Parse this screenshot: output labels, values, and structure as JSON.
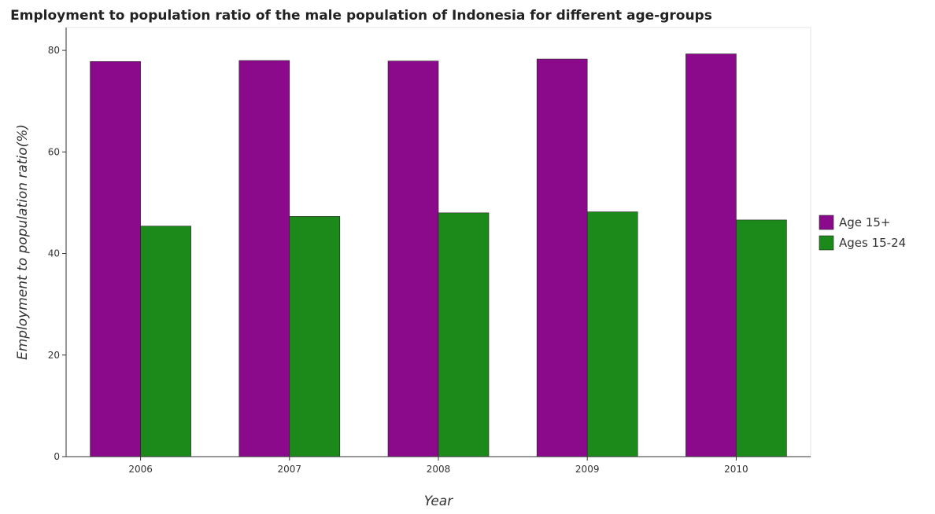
{
  "chart_data": {
    "type": "bar",
    "title": "Employment to population ratio of the male population of Indonesia for different age-groups",
    "xlabel": "Year",
    "ylabel": "Employment to population ratio(%)",
    "categories": [
      "2006",
      "2007",
      "2008",
      "2009",
      "2010"
    ],
    "series": [
      {
        "name": "Age 15+",
        "color": "#8b0a8b",
        "values": [
          77.8,
          78.0,
          77.9,
          78.3,
          79.3
        ]
      },
      {
        "name": "Ages 15-24",
        "color": "#1b8a1b",
        "values": [
          45.4,
          47.3,
          48.0,
          48.2,
          46.6
        ]
      }
    ],
    "ylim": [
      0,
      84.5
    ],
    "yticks": [
      0,
      20,
      40,
      60,
      80
    ],
    "grid": false,
    "legend_position": "right"
  }
}
